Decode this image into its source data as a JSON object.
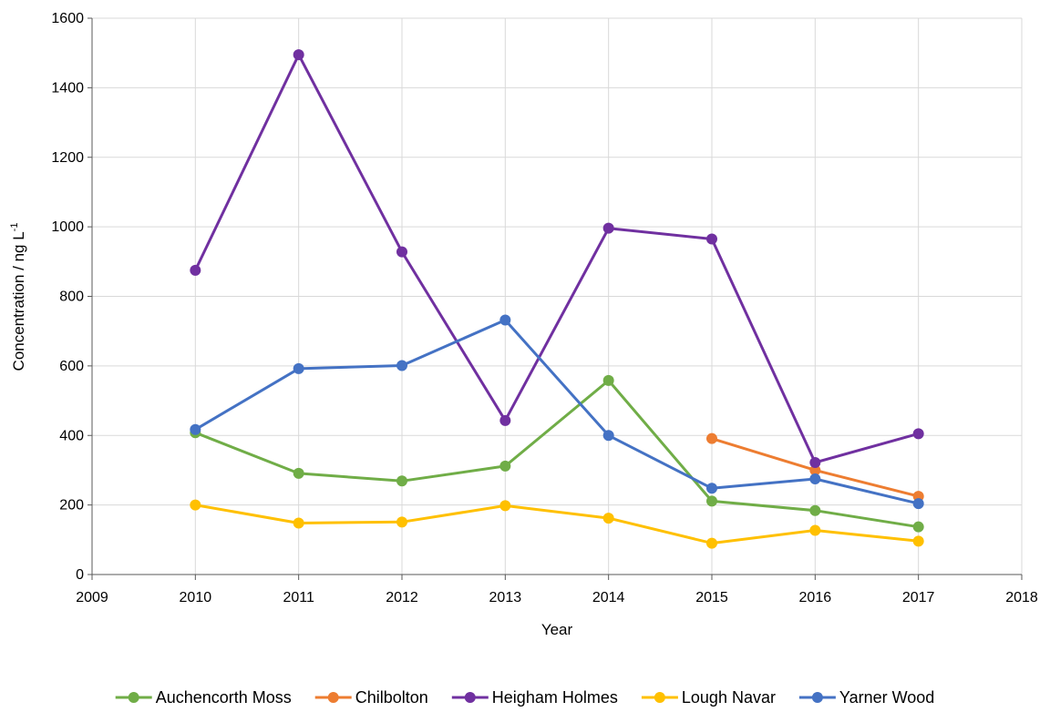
{
  "chart_data": {
    "type": "line",
    "title": "",
    "xlabel": "Year",
    "ylabel": "Concentration / ng L",
    "ylabel_superscript": "-1",
    "xlim": [
      2009,
      2018
    ],
    "ylim": [
      0,
      1600
    ],
    "xticks": [
      2009,
      2010,
      2011,
      2012,
      2013,
      2014,
      2015,
      2016,
      2017,
      2018
    ],
    "yticks": [
      0,
      200,
      400,
      600,
      800,
      1000,
      1200,
      1400,
      1600
    ],
    "grid": true,
    "legend_position": "bottom",
    "series": [
      {
        "name": "Auchencorth Moss",
        "color": "#70ad47",
        "x": [
          2010,
          2011,
          2012,
          2013,
          2014,
          2015,
          2016,
          2017
        ],
        "y": [
          408,
          291,
          269,
          312,
          558,
          211,
          184,
          137
        ]
      },
      {
        "name": "Chilbolton",
        "color": "#ed7d31",
        "x": [
          2015,
          2016,
          2017
        ],
        "y": [
          391,
          300,
          225
        ]
      },
      {
        "name": "Heigham Holmes",
        "color": "#7030a0",
        "x": [
          2010,
          2011,
          2012,
          2013,
          2014,
          2015,
          2016,
          2017
        ],
        "y": [
          875,
          1495,
          928,
          443,
          996,
          965,
          322,
          405
        ]
      },
      {
        "name": "Lough Navar",
        "color": "#ffc000",
        "x": [
          2010,
          2011,
          2012,
          2013,
          2014,
          2015,
          2016,
          2017
        ],
        "y": [
          200,
          148,
          151,
          198,
          162,
          90,
          127,
          96
        ]
      },
      {
        "name": "Yarner Wood",
        "color": "#4472c4",
        "x": [
          2010,
          2011,
          2012,
          2013,
          2014,
          2015,
          2016,
          2017
        ],
        "y": [
          417,
          592,
          601,
          732,
          400,
          248,
          275,
          204
        ]
      }
    ]
  }
}
